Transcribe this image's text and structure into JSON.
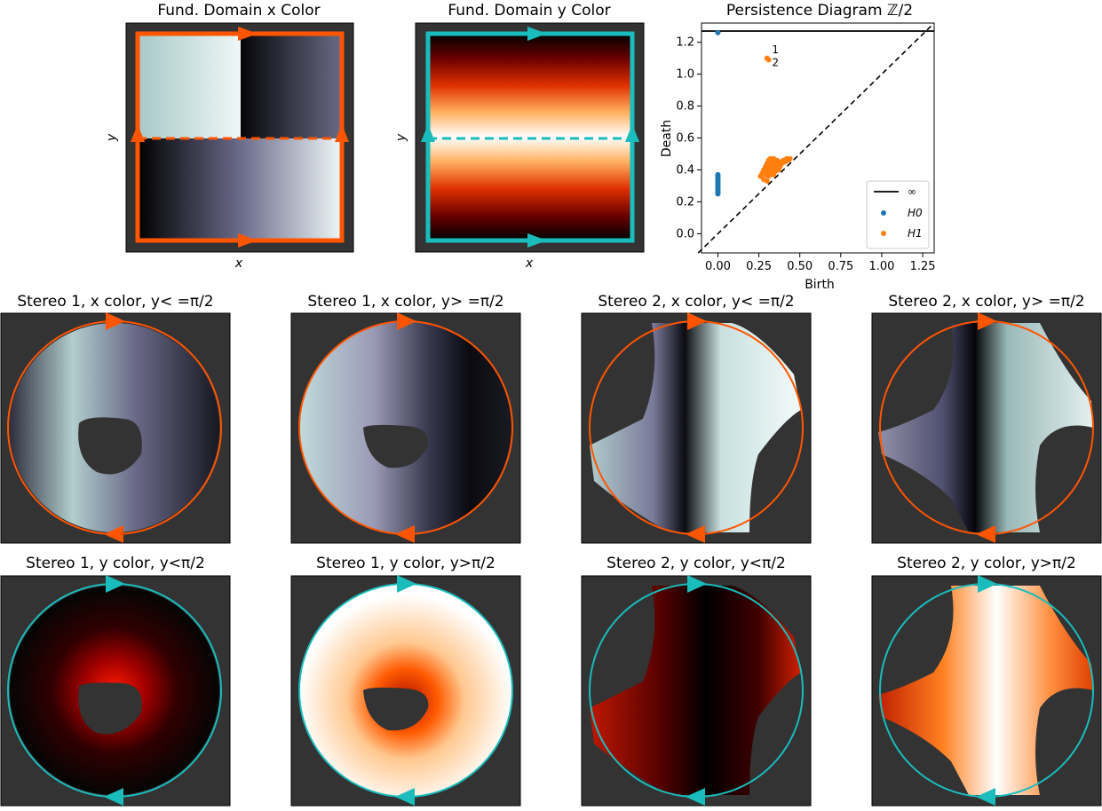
{
  "panels": {
    "fund_x": {
      "title": "Fund. Domain x Color",
      "xlabel": "x",
      "ylabel": "y"
    },
    "fund_y": {
      "title": "Fund. Domain y Color",
      "xlabel": "x",
      "ylabel": "y"
    },
    "stereo": [
      {
        "title": "Stereo 1, x color, y< =π/2"
      },
      {
        "title": "Stereo 1, x color, y> =π/2"
      },
      {
        "title": "Stereo 2, x color, y< =π/2"
      },
      {
        "title": "Stereo 2, x color, y> =π/2"
      },
      {
        "title": "Stereo 1, y color, y<π/2"
      },
      {
        "title": "Stereo 1, y color, y>π/2"
      },
      {
        "title": "Stereo 2, y color, y<π/2"
      },
      {
        "title": "Stereo 2, y color, y>π/2"
      }
    ]
  },
  "colors": {
    "orange": "#ff5500",
    "teal": "#1abcbc",
    "panel_bg": "#333333",
    "h0": "#1f77b4",
    "h1": "#ff7f0e"
  },
  "chart_data": {
    "type": "scatter",
    "title": "Persistence Diagram ℤ/2",
    "xlabel": "Birth",
    "ylabel": "Death",
    "xlim": [
      -0.1,
      1.32
    ],
    "ylim": [
      -0.12,
      1.32
    ],
    "xticks": [
      "0.00",
      "0.25",
      "0.50",
      "0.75",
      "1.00",
      "1.25"
    ],
    "xtick_values": [
      0,
      0.25,
      0.5,
      0.75,
      1.0,
      1.25
    ],
    "yticks": [
      "0.0",
      "0.2",
      "0.4",
      "0.6",
      "0.8",
      "1.0",
      "1.2"
    ],
    "ytick_values": [
      0,
      0.2,
      0.4,
      0.6,
      0.8,
      1.0,
      1.2
    ],
    "infinity_line": 1.27,
    "legend": [
      "∞",
      "H0",
      "H1"
    ],
    "legend_position": "lower-right",
    "annotations": [
      "1",
      "2"
    ],
    "series": [
      {
        "name": "H0",
        "color": "#1f77b4",
        "points": [
          [
            0,
            1.26
          ],
          [
            0,
            0.37
          ],
          [
            0,
            0.36
          ],
          [
            0,
            0.35
          ],
          [
            0,
            0.34
          ],
          [
            0,
            0.33
          ],
          [
            0,
            0.32
          ],
          [
            0,
            0.31
          ],
          [
            0,
            0.3
          ],
          [
            0,
            0.29
          ],
          [
            0,
            0.28
          ],
          [
            0,
            0.27
          ],
          [
            0,
            0.26
          ],
          [
            0,
            0.25
          ]
        ]
      },
      {
        "name": "H1",
        "color": "#ff7f0e",
        "points": [
          [
            0.3,
            1.1
          ],
          [
            0.31,
            1.09
          ],
          [
            0.26,
            0.36
          ],
          [
            0.27,
            0.38
          ],
          [
            0.28,
            0.4
          ],
          [
            0.28,
            0.34
          ],
          [
            0.29,
            0.42
          ],
          [
            0.29,
            0.37
          ],
          [
            0.3,
            0.44
          ],
          [
            0.3,
            0.39
          ],
          [
            0.3,
            0.33
          ],
          [
            0.31,
            0.46
          ],
          [
            0.31,
            0.41
          ],
          [
            0.31,
            0.36
          ],
          [
            0.32,
            0.47
          ],
          [
            0.32,
            0.43
          ],
          [
            0.32,
            0.38
          ],
          [
            0.33,
            0.45
          ],
          [
            0.33,
            0.4
          ],
          [
            0.34,
            0.47
          ],
          [
            0.34,
            0.42
          ],
          [
            0.34,
            0.37
          ],
          [
            0.35,
            0.44
          ],
          [
            0.35,
            0.39
          ],
          [
            0.36,
            0.46
          ],
          [
            0.36,
            0.41
          ],
          [
            0.37,
            0.43
          ],
          [
            0.37,
            0.4
          ],
          [
            0.38,
            0.45
          ],
          [
            0.38,
            0.42
          ],
          [
            0.39,
            0.44
          ],
          [
            0.4,
            0.46
          ],
          [
            0.41,
            0.45
          ],
          [
            0.42,
            0.47
          ],
          [
            0.43,
            0.46
          ],
          [
            0.44,
            0.47
          ]
        ]
      }
    ]
  }
}
